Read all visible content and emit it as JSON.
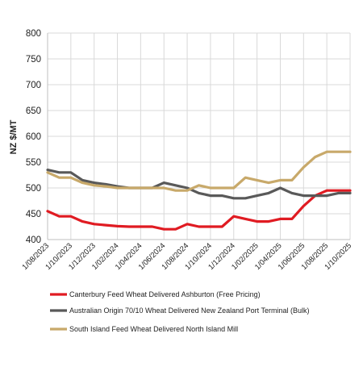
{
  "chart_data": {
    "type": "line",
    "title": "",
    "xlabel": "",
    "ylabel": "NZ $/MT",
    "ylim": [
      400,
      800
    ],
    "yticks": [
      400,
      450,
      500,
      550,
      600,
      650,
      700,
      750,
      800
    ],
    "grid": true,
    "legend_position": "bottom",
    "x": [
      "1/08/2023",
      "1/09/2023",
      "1/10/2023",
      "1/11/2023",
      "1/12/2023",
      "1/01/2024",
      "1/02/2024",
      "1/03/2024",
      "1/04/2024",
      "1/05/2024",
      "1/06/2024",
      "1/07/2024",
      "1/08/2024",
      "1/09/2024",
      "1/10/2024",
      "1/11/2024",
      "1/12/2024",
      "1/01/2025",
      "1/02/2025",
      "1/03/2025",
      "1/04/2025",
      "1/05/2025",
      "1/06/2025",
      "1/07/2025",
      "1/08/2025",
      "1/09/2025",
      "1/10/2025"
    ],
    "xtick_labels": [
      "1/08/2023",
      "1/10/2023",
      "1/12/2023",
      "1/02/2024",
      "1/04/2024",
      "1/06/2024",
      "1/08/2024",
      "1/10/2024",
      "1/12/2024",
      "1/02/2025",
      "1/04/2025",
      "1/06/2025",
      "1/08/2025",
      "1/10/2025"
    ],
    "series": [
      {
        "name": "Canterbury Feed Wheat Delivered Ashburton (Free Pricing)",
        "color": "#e01b22",
        "values": [
          455,
          445,
          445,
          435,
          430,
          428,
          426,
          425,
          425,
          425,
          420,
          420,
          430,
          425,
          425,
          425,
          445,
          440,
          435,
          435,
          440,
          440,
          465,
          485,
          495,
          495,
          495
        ]
      },
      {
        "name": "Australian Origin 70/10 Wheat Delivered New Zealand Port Terminal (Bulk)",
        "color": "#595959",
        "values": [
          535,
          530,
          530,
          515,
          510,
          507,
          503,
          500,
          500,
          500,
          510,
          505,
          500,
          490,
          485,
          485,
          480,
          480,
          485,
          490,
          500,
          490,
          485,
          485,
          485,
          490,
          490
        ]
      },
      {
        "name": "South Island Feed Wheat Delivered North Island Mill",
        "color": "#c8a96a",
        "values": [
          530,
          520,
          520,
          510,
          505,
          503,
          500,
          500,
          500,
          500,
          500,
          495,
          495,
          505,
          500,
          500,
          500,
          520,
          515,
          510,
          515,
          515,
          540,
          560,
          570,
          570,
          570
        ]
      }
    ]
  }
}
